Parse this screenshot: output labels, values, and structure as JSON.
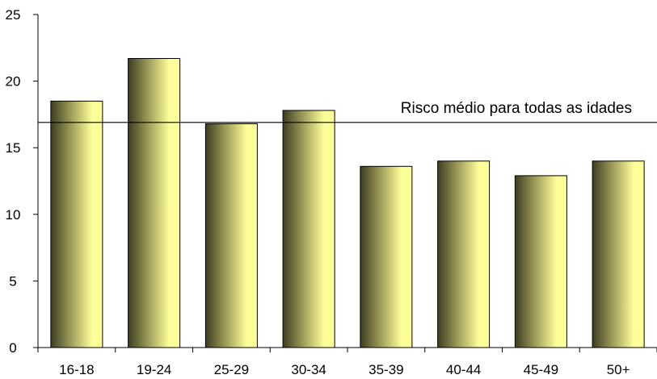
{
  "chart_data": {
    "type": "bar",
    "title": "",
    "xlabel": "",
    "ylabel": "",
    "categories": [
      "16-18",
      "19-24",
      "25-29",
      "30-34",
      "35-39",
      "40-44",
      "45-49",
      "50+"
    ],
    "values": [
      18.5,
      21.7,
      16.8,
      17.8,
      13.6,
      14.0,
      12.9,
      14.0
    ],
    "ylim": [
      0,
      25
    ],
    "yticks": [
      "0",
      "5",
      "10",
      "15",
      "20",
      "25"
    ],
    "grid": false,
    "reference_line": {
      "value": 16.9,
      "label": "Risco médio para todas as idades"
    },
    "colors": {
      "bar_dark": "#3d3d22",
      "bar_mid": "#9c9a58",
      "bar_light": "#ffff99",
      "axis": "#000000"
    }
  }
}
